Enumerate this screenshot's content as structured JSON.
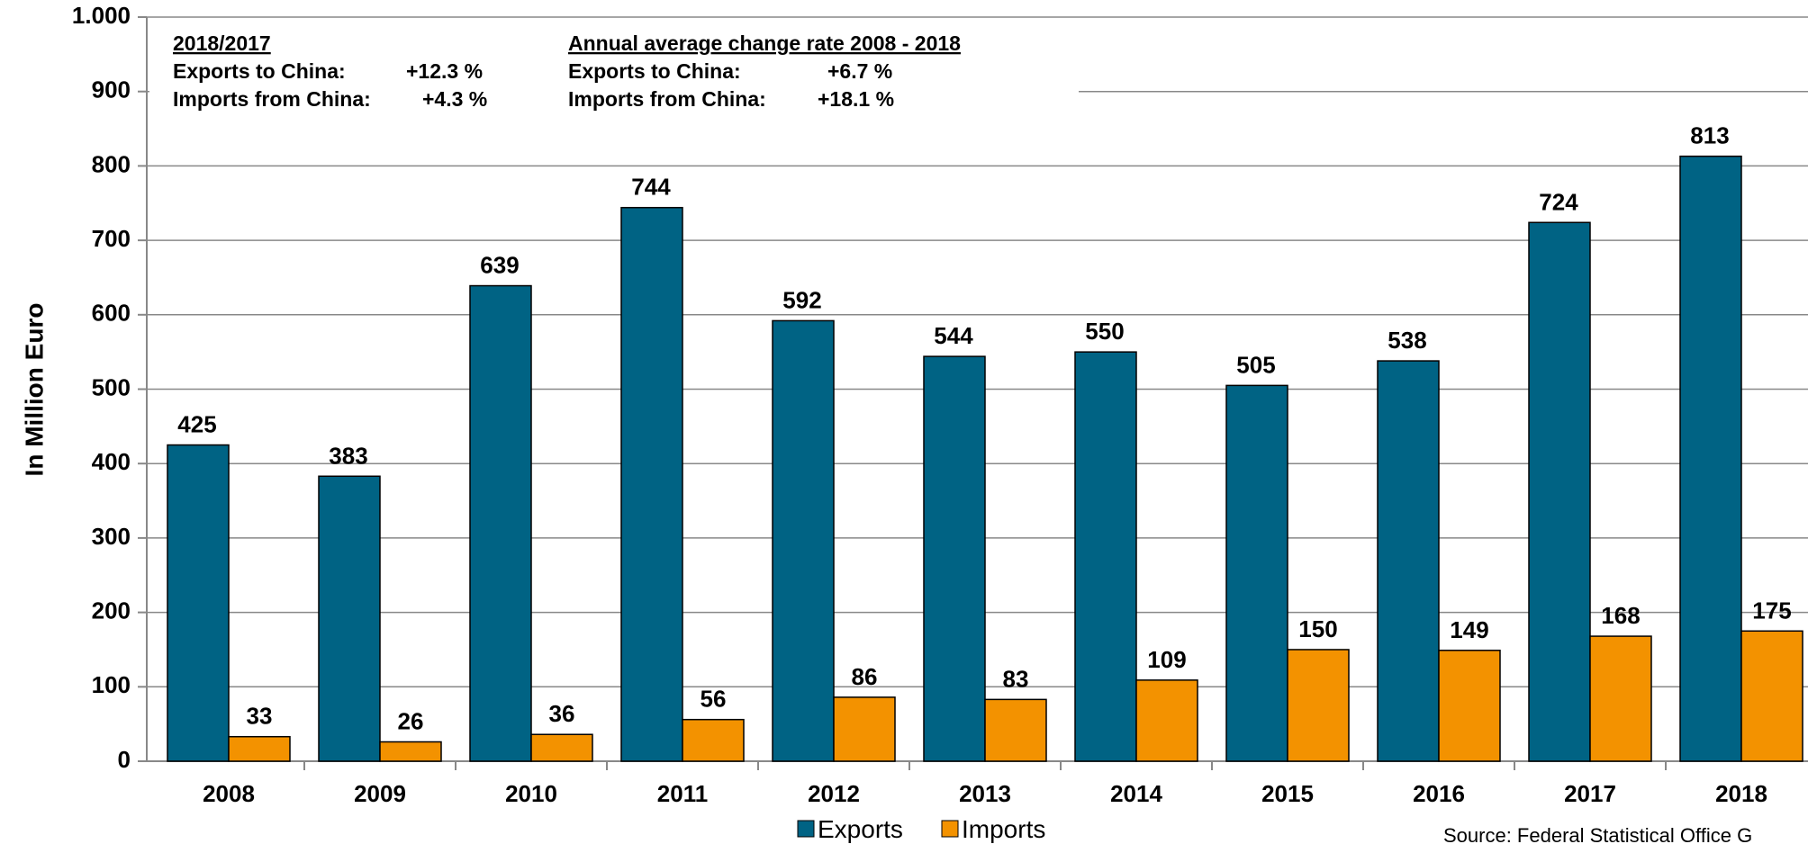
{
  "chart_data": {
    "type": "bar",
    "y_label": "In Million Euro",
    "categories": [
      "2008",
      "2009",
      "2010",
      "2011",
      "2012",
      "2013",
      "2014",
      "2015",
      "2016",
      "2017",
      "2018"
    ],
    "series": [
      {
        "name": "Exports",
        "color": "#006384",
        "values": [
          425,
          383,
          639,
          744,
          592,
          544,
          550,
          505,
          538,
          724,
          813
        ]
      },
      {
        "name": "Imports",
        "color": "#f39200",
        "values": [
          33,
          26,
          36,
          56,
          86,
          83,
          109,
          150,
          149,
          168,
          175
        ]
      }
    ],
    "ylim": [
      0,
      1000
    ],
    "yticks": [
      0,
      100,
      200,
      300,
      400,
      500,
      600,
      700,
      800,
      900,
      {
        "value": 1000,
        "label": "1.000"
      }
    ],
    "grid": true,
    "annotations": [
      {
        "title": "2018/2017",
        "lines": [
          {
            "label": "Exports to China:",
            "value": "+12.3 %"
          },
          {
            "label": "Imports from China:",
            "value": "+4.3 %"
          }
        ]
      },
      {
        "title": "Annual average change rate 2008 - 2018",
        "lines": [
          {
            "label": "Exports to China:",
            "value": "+6.7 %"
          },
          {
            "label": "Imports from China:",
            "value": "+18.1 %"
          }
        ]
      }
    ],
    "source": "Source: Federal Statistical Office G"
  }
}
